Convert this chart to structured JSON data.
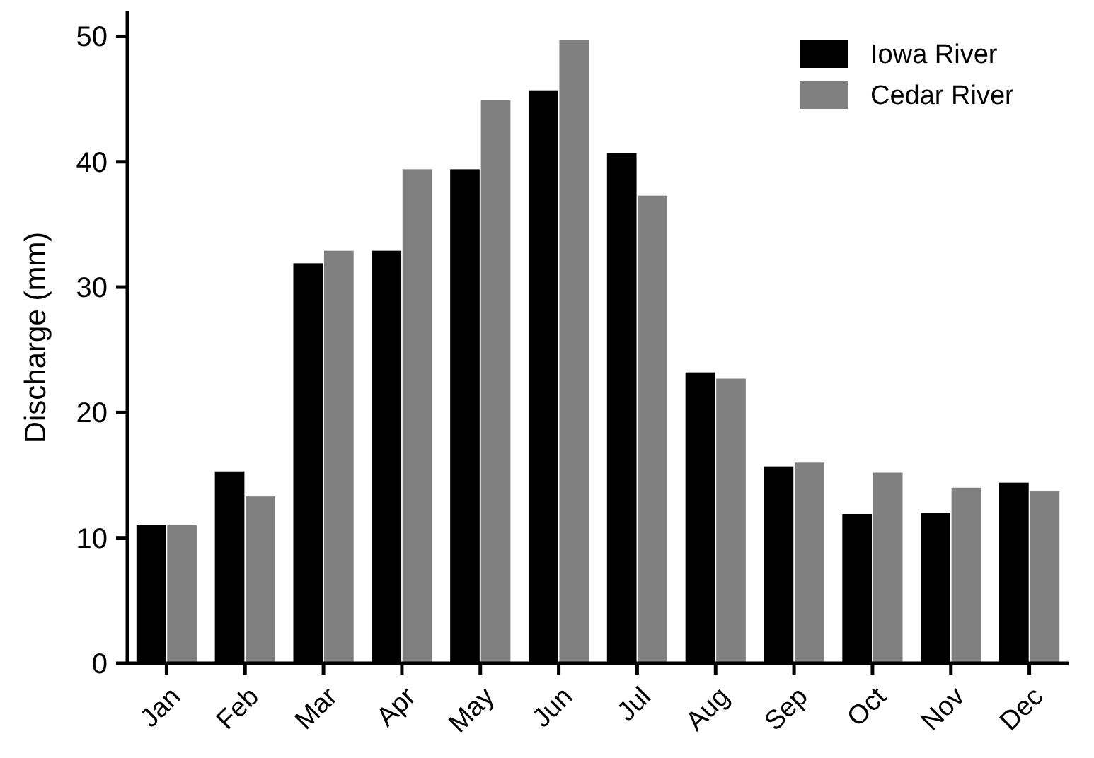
{
  "chart_data": {
    "type": "bar",
    "ylabel": "Discharge (mm)",
    "categories": [
      "Jan",
      "Feb",
      "Mar",
      "Apr",
      "May",
      "Jun",
      "Jul",
      "Aug",
      "Sep",
      "Oct",
      "Nov",
      "Dec"
    ],
    "series": [
      {
        "name": "Iowa River",
        "color": "#000000",
        "values": [
          11,
          15.3,
          31.9,
          32.9,
          39.4,
          45.7,
          40.7,
          23.2,
          15.7,
          11.9,
          12,
          14.4
        ]
      },
      {
        "name": "Cedar River",
        "color": "#808080",
        "values": [
          11,
          13.3,
          32.9,
          39.4,
          44.9,
          49.7,
          37.3,
          22.7,
          16,
          15.2,
          14,
          13.7
        ]
      }
    ],
    "ylim": [
      0,
      52
    ],
    "yticks": [
      0,
      10,
      20,
      30,
      40,
      50
    ],
    "grid": false,
    "legend": "top right"
  }
}
